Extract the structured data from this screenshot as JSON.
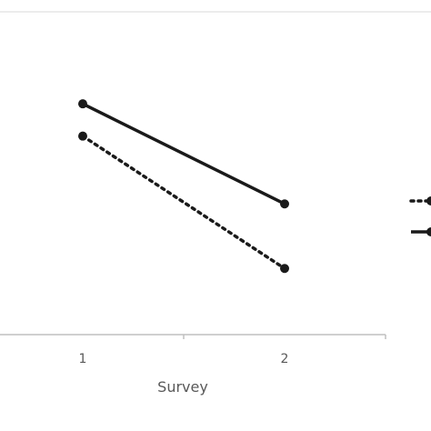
{
  "chart_data": {
    "type": "line",
    "title": "",
    "xlabel": "Survey",
    "ylabel": "",
    "categories": [
      "1",
      "2"
    ],
    "ylim": [
      0,
      10
    ],
    "grid": false,
    "legend": "right",
    "series": [
      {
        "values": [
          7.15,
          4.05
        ],
        "style": "solid",
        "color": "#1a1a1a"
      },
      {
        "values": [
          6.15,
          2.05
        ],
        "style": "dotted",
        "color": "#1a1a1a"
      }
    ]
  },
  "colors": {
    "axis": "#bfbfbf",
    "frame": "#d9d9d9",
    "text": "#595959"
  }
}
